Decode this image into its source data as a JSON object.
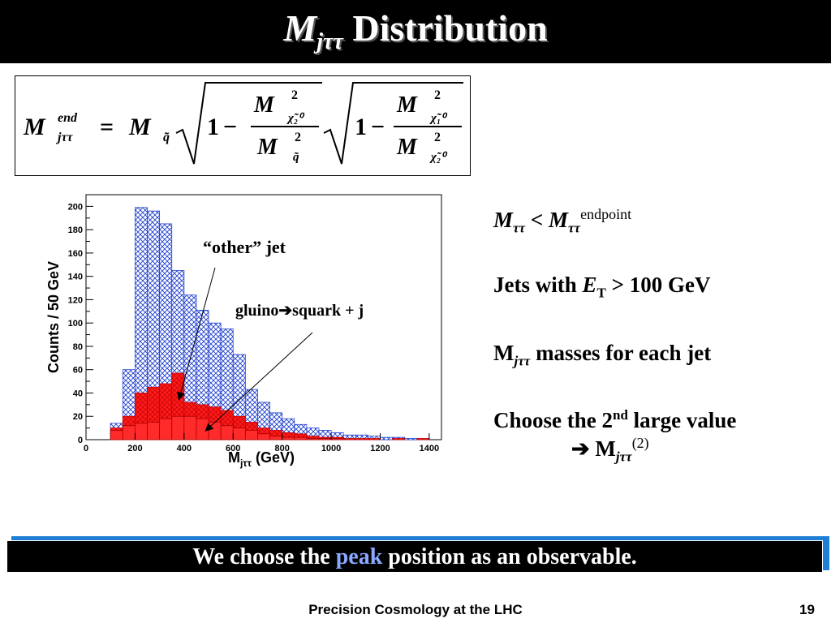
{
  "title": {
    "symbol": "M",
    "subscript": "jττ",
    "text": " Distribution"
  },
  "formula": {
    "lhs": "M",
    "lhs_sup": "end",
    "lhs_sub": "jττ",
    "eq": "=",
    "m": "M",
    "m_sub": "q̃",
    "one": "1",
    "minus": "−",
    "frac1_num": "M",
    "frac1_num_sub": "χ̃₂⁰",
    "frac1_den": "M",
    "frac1_den_sub": "q̃",
    "frac2_num": "M",
    "frac2_num_sub": "χ̃₁⁰",
    "frac2_den": "M",
    "frac2_den_sub": "χ̃₂⁰",
    "sq": "2"
  },
  "bullets": {
    "b1_m": "M",
    "b1_sub": "ττ",
    "b1_lt": " < ",
    "b1_m2": "M",
    "b1_sub2": "ττ",
    "b1_sup": "endpoint",
    "b2_text": "Jets with ",
    "b2_e": "E",
    "b2_sub": "T",
    "b2_rest": " > 100 GeV",
    "b3_m": "M",
    "b3_sub": "jττ",
    "b3_rest": " masses for each jet",
    "b4_text": "Choose the 2",
    "b4_sup": "nd",
    "b4_rest": " large value",
    "b5_arrow": "➔ ",
    "b5_m": "M",
    "b5_sub": "jττ",
    "b5_sup": "(2)"
  },
  "banner": {
    "pre": "We choose the ",
    "peak": "peak",
    "post": " position as an observable."
  },
  "footer": {
    "text": "Precision Cosmology at the LHC",
    "page": "19"
  },
  "colors": {
    "blue_hatch": "#1f3fd0",
    "red_fill": "#ff1a1a",
    "banner_accent": "#1f7fd6",
    "peak_text": "#8aa8ff"
  },
  "chart_data": {
    "type": "bar",
    "subtype": "step-histogram",
    "xlabel": "M",
    "xlabel_sub": "jττ",
    "xlabel_unit": " (GeV)",
    "ylabel": "Counts / 50 GeV",
    "xlim": [
      0,
      1450
    ],
    "ylim": [
      0,
      210
    ],
    "xticks": [
      0,
      200,
      400,
      600,
      800,
      1000,
      1200,
      1400
    ],
    "yticks": [
      0,
      20,
      40,
      60,
      80,
      100,
      120,
      140,
      160,
      180,
      200
    ],
    "bin_width": 50,
    "bin_edges": [
      100,
      150,
      200,
      250,
      300,
      350,
      400,
      450,
      500,
      550,
      600,
      650,
      700,
      750,
      800,
      850,
      900,
      950,
      1000,
      1050,
      1100,
      1150,
      1200,
      1250,
      1300,
      1350,
      1400
    ],
    "series": [
      {
        "name": "",
        "style": "blue-hatched",
        "values": [
          14,
          60,
          199,
          196,
          185,
          145,
          124,
          111,
          100,
          95,
          73,
          43,
          32,
          23,
          18,
          13,
          10,
          8,
          6,
          4,
          4,
          3,
          2,
          2,
          1,
          1
        ]
      },
      {
        "name": "",
        "style": "red-filled",
        "values": [
          10,
          20,
          40,
          45,
          48,
          57,
          32,
          30,
          28,
          25,
          20,
          15,
          10,
          8,
          6,
          5,
          3,
          2,
          2,
          1,
          1,
          1,
          0,
          1,
          0,
          1
        ]
      },
      {
        "name": "",
        "style": "red-inner",
        "values": [
          8,
          12,
          14,
          15,
          18,
          20,
          20,
          18,
          15,
          12,
          10,
          8,
          5,
          3,
          2,
          2,
          1,
          1,
          1,
          0,
          0,
          0,
          0,
          0,
          0,
          0
        ]
      }
    ],
    "annotations": [
      {
        "text": "“other” jet",
        "arrow_to": [
          380,
          35
        ]
      },
      {
        "text_pre": "gluino",
        "arrow": "➔",
        "text_post": "squark + j",
        "arrow_to": [
          490,
          8
        ]
      }
    ]
  }
}
